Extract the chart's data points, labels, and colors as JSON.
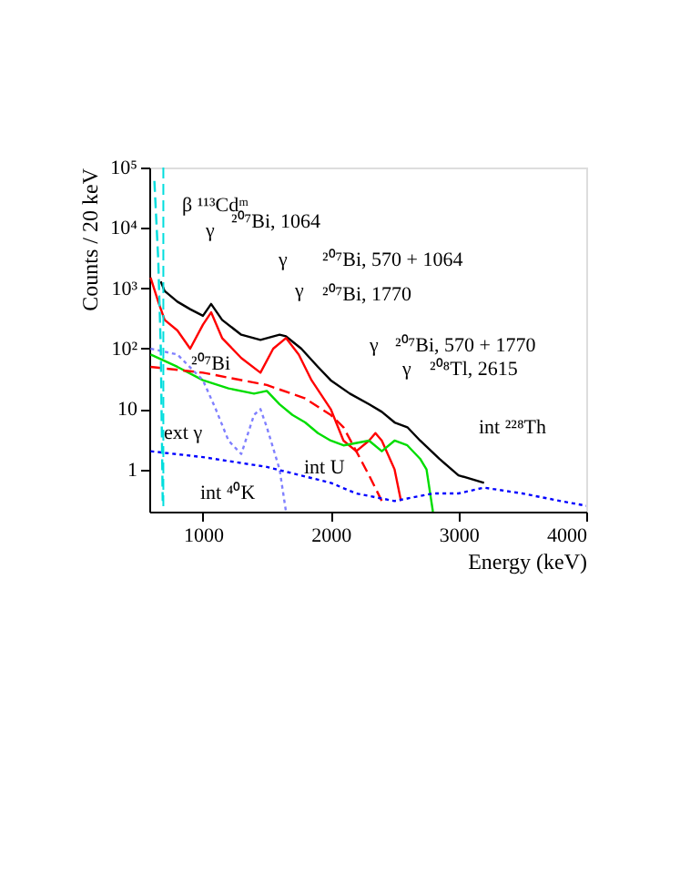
{
  "chart_data": {
    "type": "line",
    "xlabel": "Energy (keV)",
    "ylabel": "Counts / 20 keV",
    "xlim": [
      580,
      4000
    ],
    "xticks": [
      {
        "value": 1000,
        "label": "1000"
      },
      {
        "value": 2000,
        "label": "2000"
      },
      {
        "value": 3000,
        "label": "3000"
      },
      {
        "value": 4000,
        "label": "4000"
      }
    ],
    "ylim": [
      0.2,
      100000
    ],
    "log": "y",
    "yticks": [
      1,
      10,
      {
        "value": 100,
        "label": "10²"
      },
      {
        "value": 1000,
        "label": "10³"
      },
      {
        "value": 10000,
        "label": "10⁴"
      },
      {
        "value": 100000,
        "label": "10⁵"
      }
    ],
    "grid": false,
    "series": [
      {
        "color": "#000000",
        "line_style": "solid",
        "x": [
          670,
          700,
          800,
          900,
          1000,
          1064,
          1150,
          1300,
          1450,
          1600,
          1650,
          1770,
          1900,
          2000,
          2150,
          2300,
          2400,
          2500,
          2600,
          2700,
          2850,
          3000,
          3200
        ],
        "values": [
          1300,
          900,
          600,
          450,
          350,
          550,
          300,
          170,
          140,
          170,
          160,
          100,
          50,
          30,
          18,
          12,
          9,
          6,
          5,
          3,
          1.5,
          0.8,
          0.6
        ]
      },
      {
        "color": "#ff0000",
        "line_style": "solid",
        "x": [
          590,
          650,
          700,
          800,
          900,
          1000,
          1064,
          1150,
          1300,
          1450,
          1550,
          1650,
          1750,
          1850,
          2000,
          2100,
          2200,
          2300,
          2350,
          2400,
          2500,
          2550
        ],
        "values": [
          1500,
          600,
          300,
          200,
          100,
          250,
          400,
          150,
          70,
          40,
          100,
          150,
          80,
          30,
          10,
          3,
          2,
          3,
          4,
          3,
          1,
          0.3
        ]
      },
      {
        "color": "#00dd00",
        "line_style": "solid",
        "x": [
          590,
          800,
          1000,
          1200,
          1400,
          1500,
          1600,
          1700,
          1800,
          1900,
          2000,
          2100,
          2300,
          2400,
          2500,
          2600,
          2700,
          2750,
          2800
        ],
        "values": [
          80,
          50,
          30,
          22,
          18,
          20,
          12,
          8,
          6,
          4,
          3,
          2.5,
          3,
          2,
          3,
          2.5,
          1.5,
          1,
          0.2
        ]
      },
      {
        "color": "#ff0000",
        "line_style": "dashed",
        "x": [
          590,
          1000,
          1500,
          1800,
          2000,
          2100,
          2200,
          2300,
          2400
        ],
        "values": [
          50,
          40,
          25,
          15,
          8,
          5,
          2,
          0.8,
          0.3
        ]
      },
      {
        "color": "#8080ff",
        "line_style": "dotted",
        "x": [
          590,
          800,
          1000,
          1100,
          1200,
          1300,
          1400,
          1450,
          1500,
          1600,
          1650
        ],
        "values": [
          100,
          80,
          30,
          10,
          3,
          1.8,
          8,
          10,
          5,
          1,
          0.2
        ]
      },
      {
        "color": "#0000ff",
        "line_style": "dotted",
        "x": [
          590,
          1000,
          1500,
          2000,
          2200,
          2500,
          2800,
          3000,
          3200,
          3500,
          3800,
          4000
        ],
        "values": [
          2,
          1.6,
          1.1,
          0.6,
          0.4,
          0.3,
          0.4,
          0.4,
          0.5,
          0.4,
          0.3,
          0.25
        ]
      },
      {
        "color": "#00dddd",
        "line_style": "dashed",
        "x": [
          620,
          650,
          670,
          685
        ],
        "values": [
          60000,
          3000,
          100,
          0.3
        ]
      }
    ],
    "ref_lines": [
      {
        "axis": "x",
        "value": 690,
        "color": "#00dddd",
        "line_style": "dashed"
      }
    ],
    "annotations": [
      "β ¹¹³Cdᵐ",
      "γ",
      "²⁰⁷Bi, 1064",
      "γ",
      "²⁰⁷Bi, 570 + 1064",
      "γ",
      "²⁰⁷Bi, 1770",
      "γ",
      "²⁰⁷Bi, 570 + 1770",
      "γ",
      "²⁰⁸Tl, 2615",
      "int ²²⁸Th",
      "²⁰⁷Bi",
      "ext γ",
      "int U",
      "int ⁴⁰K"
    ]
  }
}
